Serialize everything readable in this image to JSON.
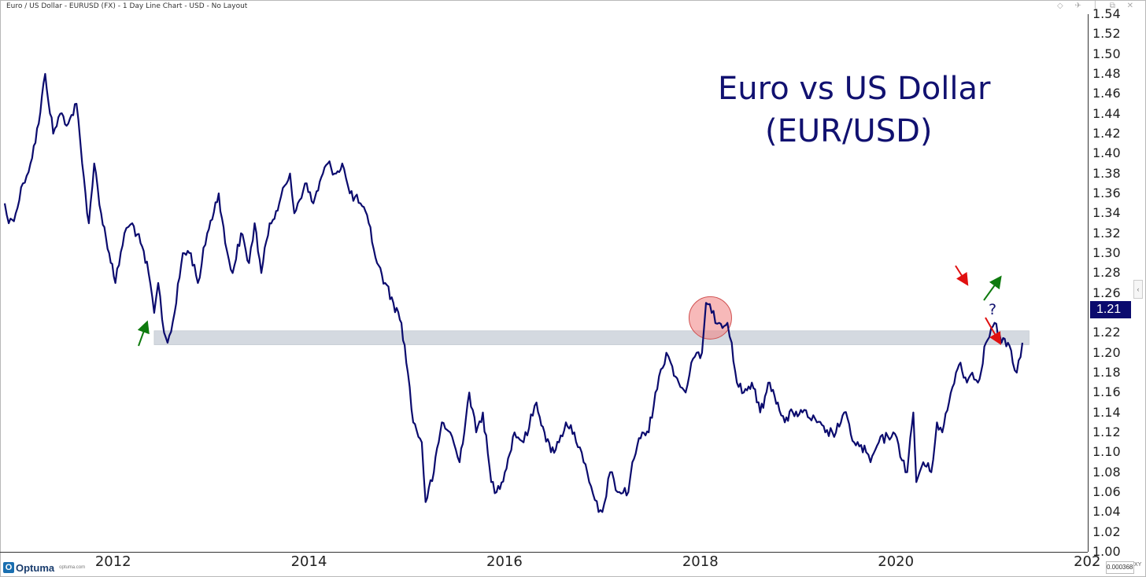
{
  "header": {
    "title": "Euro / US Dollar - EURUSD (FX) - 1 Day Line Chart - USD - No Layout",
    "window_icons": "◇ ✈ │ ⧉ ✕"
  },
  "annotations": {
    "title_line1": "Euro vs US Dollar",
    "title_line2": "(EUR/USD)",
    "question_mark": "?",
    "current_price": "1.21"
  },
  "footer": {
    "logo_mark": "O",
    "logo_text": "Optuma",
    "logo_site": "optuma.com",
    "scale_value": "0.0003683",
    "xy_label": "XY"
  },
  "colors": {
    "line": "#0b0b6e",
    "band": "#d4d9e0",
    "highlight_circle": "#f08080",
    "up_arrow": "#0e7a0e",
    "down_arrow": "#e01010",
    "price_tag_bg": "#0b0b6e"
  },
  "chart_data": {
    "type": "line",
    "title": "Euro vs US Dollar (EUR/USD)",
    "xlabel": "",
    "ylabel": "",
    "x_ticks": [
      "2012",
      "2014",
      "2016",
      "2018",
      "2020",
      "202"
    ],
    "y_ticks": [
      "1.54",
      "1.52",
      "1.50",
      "1.48",
      "1.46",
      "1.44",
      "1.42",
      "1.40",
      "1.38",
      "1.36",
      "1.34",
      "1.32",
      "1.30",
      "1.28",
      "1.26",
      "1.24",
      "1.22",
      "1.20",
      "1.18",
      "1.16",
      "1.14",
      "1.12",
      "1.10",
      "1.08",
      "1.06",
      "1.04",
      "1.02",
      "1.00"
    ],
    "ylim": [
      1.0,
      1.54
    ],
    "xlim": [
      "2010-11-25",
      "2021-12-20"
    ],
    "grid": false,
    "series": [
      {
        "points": [
          [
            "2010-11-25",
            1.35
          ],
          [
            "2010-12-10",
            1.33
          ],
          [
            "2011-01-05",
            1.34
          ],
          [
            "2011-02-01",
            1.37
          ],
          [
            "2011-03-01",
            1.39
          ],
          [
            "2011-04-01",
            1.43
          ],
          [
            "2011-04-25",
            1.48
          ],
          [
            "2011-05-25",
            1.42
          ],
          [
            "2011-06-20",
            1.44
          ],
          [
            "2011-07-20",
            1.43
          ],
          [
            "2011-08-20",
            1.45
          ],
          [
            "2011-09-10",
            1.39
          ],
          [
            "2011-10-05",
            1.33
          ],
          [
            "2011-10-25",
            1.39
          ],
          [
            "2011-11-20",
            1.34
          ],
          [
            "2011-12-20",
            1.3
          ],
          [
            "2012-01-12",
            1.27
          ],
          [
            "2012-02-15",
            1.32
          ],
          [
            "2012-03-15",
            1.33
          ],
          [
            "2012-04-15",
            1.31
          ],
          [
            "2012-05-15",
            1.28
          ],
          [
            "2012-06-05",
            1.24
          ],
          [
            "2012-06-20",
            1.27
          ],
          [
            "2012-07-12",
            1.22
          ],
          [
            "2012-07-25",
            1.21
          ],
          [
            "2012-08-20",
            1.24
          ],
          [
            "2012-09-20",
            1.3
          ],
          [
            "2012-10-20",
            1.3
          ],
          [
            "2012-11-15",
            1.27
          ],
          [
            "2012-12-20",
            1.32
          ],
          [
            "2013-02-01",
            1.36
          ],
          [
            "2013-02-25",
            1.31
          ],
          [
            "2013-03-25",
            1.28
          ],
          [
            "2013-04-25",
            1.32
          ],
          [
            "2013-05-25",
            1.29
          ],
          [
            "2013-06-15",
            1.33
          ],
          [
            "2013-07-10",
            1.28
          ],
          [
            "2013-08-10",
            1.33
          ],
          [
            "2013-09-15",
            1.35
          ],
          [
            "2013-10-25",
            1.38
          ],
          [
            "2013-11-10",
            1.34
          ],
          [
            "2013-12-20",
            1.37
          ],
          [
            "2014-01-20",
            1.35
          ],
          [
            "2014-02-25",
            1.38
          ],
          [
            "2014-03-15",
            1.39
          ],
          [
            "2014-04-15",
            1.38
          ],
          [
            "2014-05-08",
            1.39
          ],
          [
            "2014-06-05",
            1.36
          ],
          [
            "2014-07-15",
            1.35
          ],
          [
            "2014-08-15",
            1.33
          ],
          [
            "2014-09-15",
            1.29
          ],
          [
            "2014-10-15",
            1.27
          ],
          [
            "2014-11-15",
            1.25
          ],
          [
            "2014-12-15",
            1.23
          ],
          [
            "2015-01-08",
            1.18
          ],
          [
            "2015-01-28",
            1.13
          ],
          [
            "2015-03-01",
            1.11
          ],
          [
            "2015-03-15",
            1.05
          ],
          [
            "2015-04-15",
            1.08
          ],
          [
            "2015-05-15",
            1.13
          ],
          [
            "2015-06-15",
            1.12
          ],
          [
            "2015-07-20",
            1.09
          ],
          [
            "2015-08-25",
            1.16
          ],
          [
            "2015-09-20",
            1.12
          ],
          [
            "2015-10-15",
            1.14
          ],
          [
            "2015-11-15",
            1.07
          ],
          [
            "2015-12-05",
            1.06
          ],
          [
            "2016-01-05",
            1.08
          ],
          [
            "2016-02-10",
            1.12
          ],
          [
            "2016-03-15",
            1.11
          ],
          [
            "2016-05-02",
            1.15
          ],
          [
            "2016-06-01",
            1.12
          ],
          [
            "2016-06-25",
            1.1
          ],
          [
            "2016-07-25",
            1.11
          ],
          [
            "2016-08-20",
            1.13
          ],
          [
            "2016-09-20",
            1.12
          ],
          [
            "2016-10-25",
            1.09
          ],
          [
            "2016-11-15",
            1.07
          ],
          [
            "2016-12-20",
            1.04
          ],
          [
            "2017-01-03",
            1.04
          ],
          [
            "2017-02-01",
            1.08
          ],
          [
            "2017-03-01",
            1.06
          ],
          [
            "2017-04-10",
            1.06
          ],
          [
            "2017-04-25",
            1.09
          ],
          [
            "2017-06-01",
            1.12
          ],
          [
            "2017-06-25",
            1.12
          ],
          [
            "2017-07-20",
            1.16
          ],
          [
            "2017-08-30",
            1.2
          ],
          [
            "2017-09-15",
            1.19
          ],
          [
            "2017-10-15",
            1.17
          ],
          [
            "2017-11-10",
            1.16
          ],
          [
            "2017-12-01",
            1.19
          ],
          [
            "2018-01-10",
            1.2
          ],
          [
            "2018-01-25",
            1.25
          ],
          [
            "2018-02-15",
            1.24
          ],
          [
            "2018-03-15",
            1.23
          ],
          [
            "2018-04-15",
            1.23
          ],
          [
            "2018-05-01",
            1.21
          ],
          [
            "2018-05-20",
            1.17
          ],
          [
            "2018-06-15",
            1.16
          ],
          [
            "2018-07-15",
            1.17
          ],
          [
            "2018-08-15",
            1.14
          ],
          [
            "2018-09-20",
            1.17
          ],
          [
            "2018-10-20",
            1.15
          ],
          [
            "2018-11-15",
            1.13
          ],
          [
            "2018-12-15",
            1.14
          ],
          [
            "2019-01-20",
            1.14
          ],
          [
            "2019-03-15",
            1.13
          ],
          [
            "2019-04-15",
            1.12
          ],
          [
            "2019-05-25",
            1.12
          ],
          [
            "2019-06-25",
            1.14
          ],
          [
            "2019-08-01",
            1.11
          ],
          [
            "2019-09-15",
            1.1
          ],
          [
            "2019-10-01",
            1.09
          ],
          [
            "2019-11-01",
            1.11
          ],
          [
            "2019-12-25",
            1.12
          ],
          [
            "2020-02-15",
            1.08
          ],
          [
            "2020-03-09",
            1.14
          ],
          [
            "2020-03-20",
            1.07
          ],
          [
            "2020-04-15",
            1.09
          ],
          [
            "2020-05-15",
            1.08
          ],
          [
            "2020-06-05",
            1.13
          ],
          [
            "2020-06-25",
            1.12
          ],
          [
            "2020-07-20",
            1.15
          ],
          [
            "2020-08-15",
            1.18
          ],
          [
            "2020-09-01",
            1.19
          ],
          [
            "2020-09-25",
            1.17
          ],
          [
            "2020-10-15",
            1.18
          ],
          [
            "2020-11-05",
            1.17
          ],
          [
            "2020-12-05",
            1.21
          ],
          [
            "2021-01-06",
            1.23
          ],
          [
            "2021-02-01",
            1.21
          ],
          [
            "2021-02-25",
            1.21
          ],
          [
            "2021-03-15",
            1.19
          ],
          [
            "2021-03-30",
            1.18
          ],
          [
            "2021-04-20",
            1.21
          ]
        ]
      }
    ],
    "band": {
      "y_low": 1.208,
      "y_high": 1.222,
      "x_start": "2012-06-05",
      "x_end": "2021-05-15"
    },
    "highlight": {
      "x": "2018-02-10",
      "y": 1.235
    }
  }
}
